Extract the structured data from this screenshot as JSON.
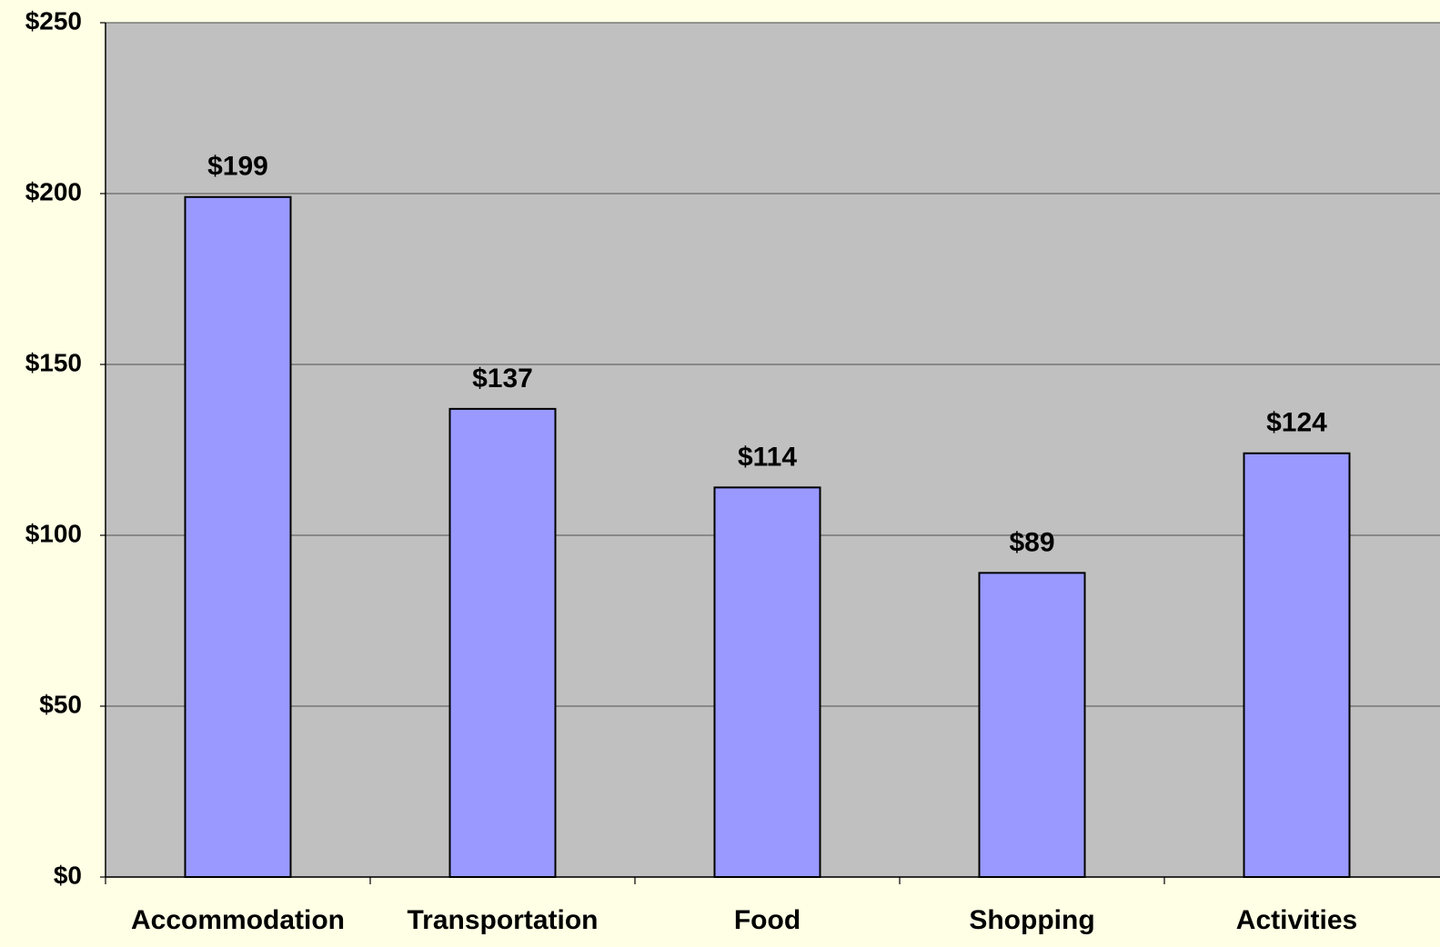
{
  "chart_data": {
    "type": "bar",
    "categories": [
      "Accommodation",
      "Transportation",
      "Food",
      "Shopping",
      "Activities"
    ],
    "values": [
      199,
      137,
      114,
      89,
      124
    ],
    "value_labels": [
      "$199",
      "$137",
      "$114",
      "$89",
      "$124"
    ],
    "color": "#9999ff",
    "ylim": [
      0,
      250
    ],
    "yticks": [
      {
        "value": 0,
        "label": "$0"
      },
      {
        "value": 50,
        "label": "$50"
      },
      {
        "value": 100,
        "label": "$100"
      },
      {
        "value": 150,
        "label": "$150"
      },
      {
        "value": 200,
        "label": "$200"
      },
      {
        "value": 250,
        "label": "$250"
      }
    ],
    "grid": true
  }
}
